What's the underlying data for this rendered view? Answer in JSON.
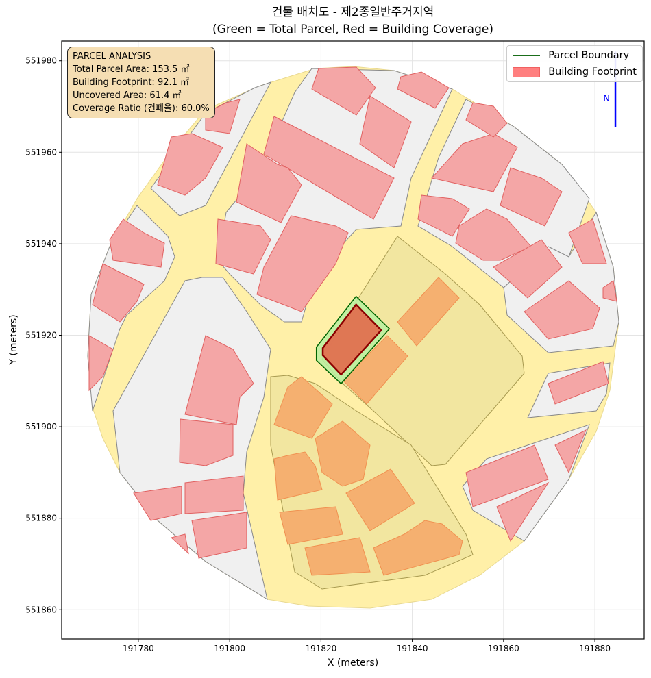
{
  "title_line1": "건물 배치도 - 제2종일반주거지역",
  "title_line2": "(Green = Total Parcel, Red = Building Coverage)",
  "info_box": {
    "heading": "PARCEL ANALYSIS",
    "total_parcel": "Total Parcel Area: 153.5 ㎡",
    "building_footprint": "Building Footprint: 92.1 ㎡",
    "uncovered": "Uncovered Area: 61.4 ㎡",
    "coverage_ratio": "Coverage Ratio (건폐율): 60.0%"
  },
  "legend": {
    "parcel_boundary": "Parcel Boundary",
    "building_footprint": "Building Footprint"
  },
  "north_arrow_label": "N",
  "colors": {
    "parcel_fill": "#b8f0a0",
    "parcel_edge": "#006400",
    "building_fill": "#e07050",
    "building_edge": "#8b0000",
    "road": "#fff0a8",
    "block": "#f0f0f0",
    "neighbor_building": "#f4a6a6",
    "target_block_building": "#f5b070",
    "north_arrow": "#0000ff",
    "info_box_bg": "#f5deb3"
  },
  "chart_data": {
    "type": "map",
    "title": "건물 배치도 - 제2종일반주거지역 (Green = Total Parcel, Red = Building Coverage)",
    "xlabel": "X (meters)",
    "ylabel": "Y (meters)",
    "xlim": [
      191763.2,
      191890.8
    ],
    "ylim": [
      551853.6,
      551984.3
    ],
    "xticks": [
      191780,
      191800,
      191820,
      191840,
      191860,
      191880
    ],
    "xtick_labels": [
      "191780",
      "191800",
      "191820",
      "191840",
      "191860",
      "191880"
    ],
    "yticks": [
      551860,
      551880,
      551900,
      551920,
      551940,
      551960,
      551980
    ],
    "ytick_labels": [
      "551860",
      "551880",
      "551900",
      "551920",
      "551940",
      "551960",
      "551980"
    ],
    "grid": true,
    "legend_position": "top-right",
    "parcel_polygon": [
      [
        191827.7,
        551928.5
      ],
      [
        191835.0,
        551921.4
      ],
      [
        191824.4,
        551909.4
      ],
      [
        191819.0,
        551914.5
      ],
      [
        191819.0,
        551917.4
      ]
    ],
    "building_polygon": [
      [
        191827.7,
        551926.7
      ],
      [
        191833.2,
        551921.1
      ],
      [
        191824.4,
        551911.4
      ],
      [
        191820.4,
        551915.6
      ],
      [
        191820.4,
        551917.2
      ]
    ],
    "north_arrow": {
      "x": 191884.5,
      "y_from": 551965.5,
      "y_to": 551982
    }
  }
}
